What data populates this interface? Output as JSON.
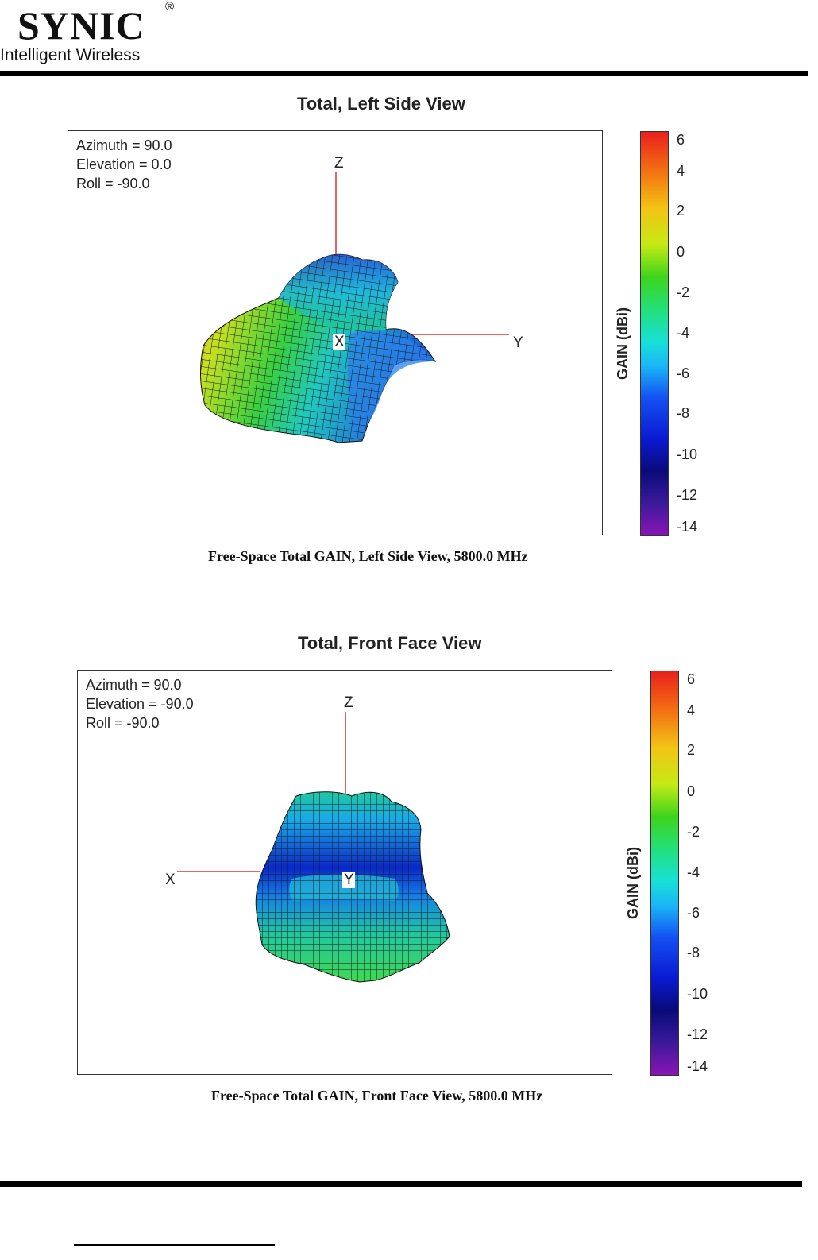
{
  "header": {
    "logo_name": "SYNIC",
    "logo_mark": "®",
    "logo_tagline": "Intelligent Wireless"
  },
  "figures": [
    {
      "title": "Total, Left Side View",
      "params": [
        "Azimuth = 90.0",
        "Elevation = 0.0",
        "Roll = -90.0"
      ],
      "axes": {
        "z": "Z",
        "y": "Y",
        "x": "X"
      },
      "colorbar_label": "GAIN (dBi)",
      "colorbar_ticks": [
        "6",
        "4",
        "2",
        "0",
        "-2",
        "-4",
        "-6",
        "-8",
        "-10",
        "-12",
        "-14"
      ],
      "caption": "Free-Space Total GAIN, Left Side View, 5800.0 MHz"
    },
    {
      "title": "Total, Front Face View",
      "params": [
        "Azimuth = 90.0",
        "Elevation = -90.0",
        "Roll = -90.0"
      ],
      "axes": {
        "z": "Z",
        "y": "Y",
        "x": "X"
      },
      "colorbar_label": "GAIN (dBi)",
      "colorbar_ticks": [
        "6",
        "4",
        "2",
        "0",
        "-2",
        "-4",
        "-6",
        "-8",
        "-10",
        "-12",
        "-14"
      ],
      "caption": "Free-Space Total GAIN, Front Face View, 5800.0 MHz"
    }
  ],
  "colors": {
    "axis_line": "#e03030",
    "mesh": "#1a1a1a"
  }
}
